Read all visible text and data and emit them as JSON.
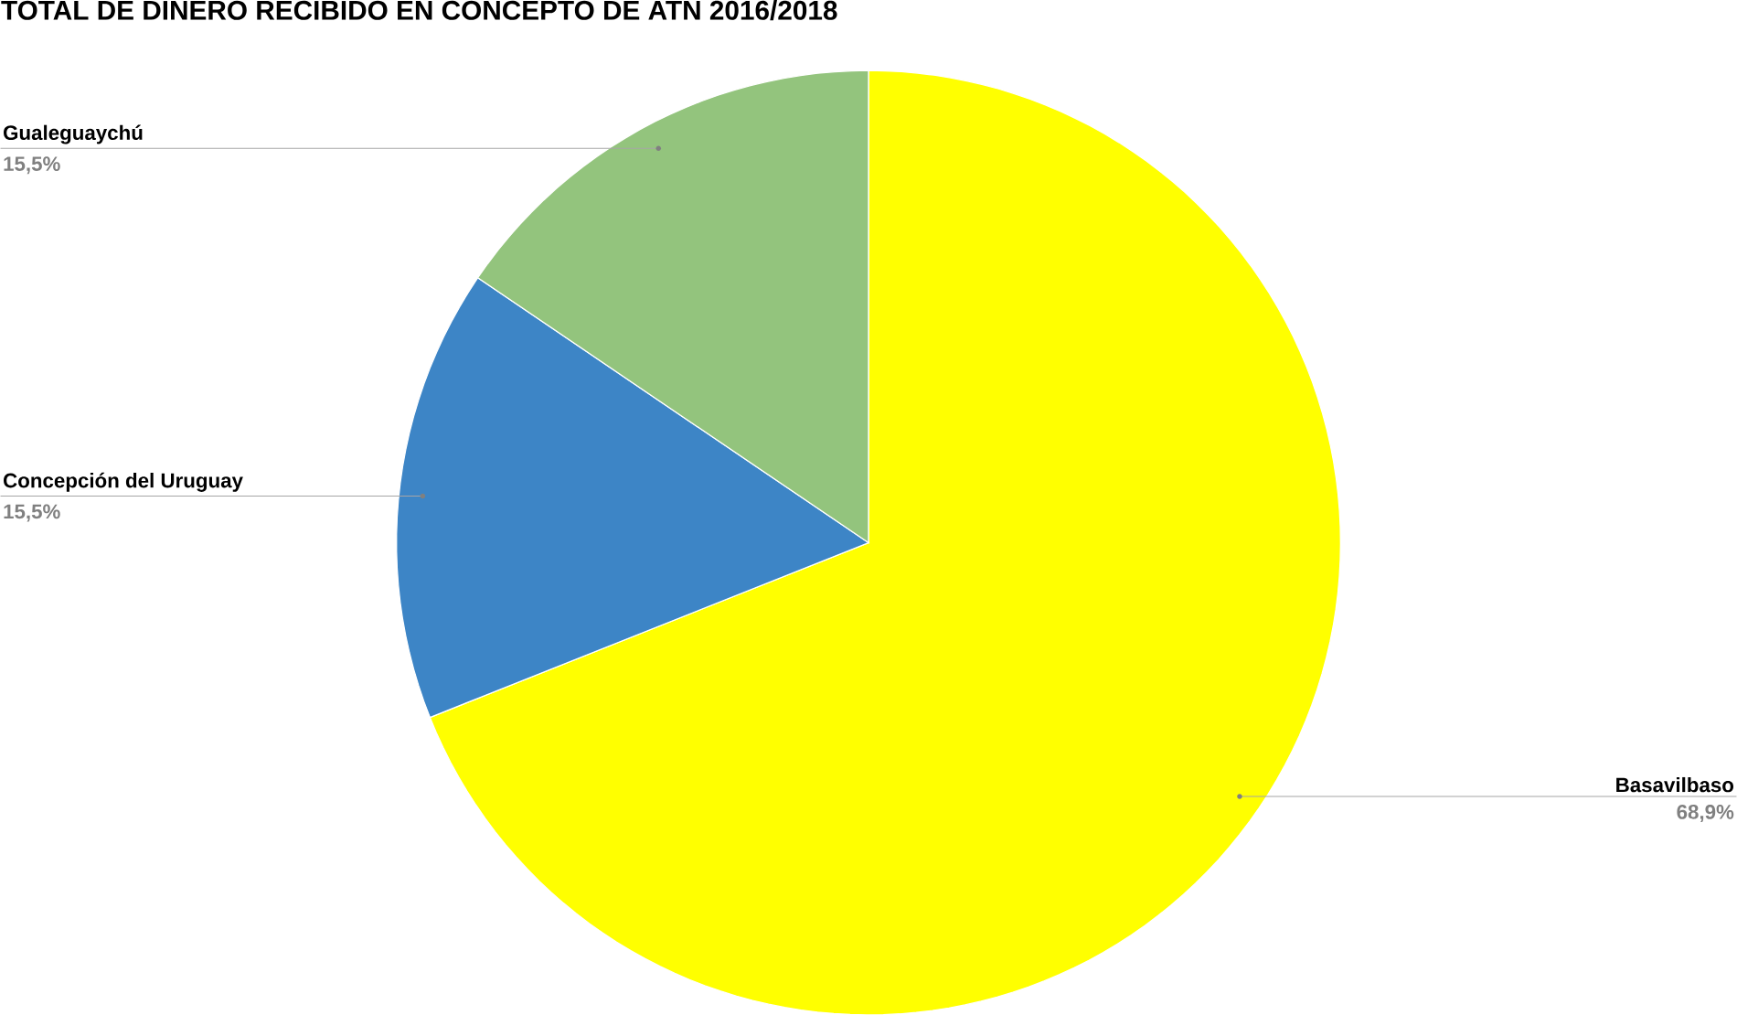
{
  "chart_data": {
    "type": "pie",
    "title": "TOTAL DE DINERO RECIBIDO EN CONCEPTO DE ATN 2016/2018",
    "categories": [
      "Basavilbaso",
      "Concepción del Uruguay",
      "Gualeguaychú"
    ],
    "values": [
      68.9,
      15.5,
      15.5
    ],
    "colors": [
      "#ffff00",
      "#3d85c6",
      "#93c47d"
    ],
    "value_labels": [
      "68,9%",
      "15,5%",
      "15,5%"
    ]
  }
}
